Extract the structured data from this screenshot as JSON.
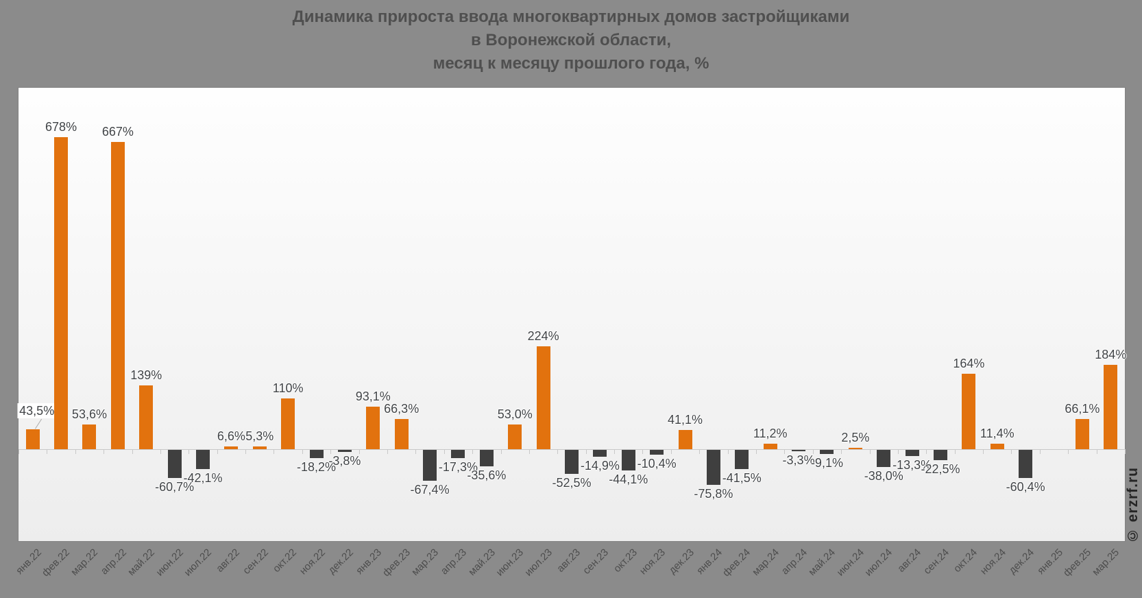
{
  "title": "Динамика прироста ввода многоквартирных домов застройщиками\nв Воронежской области,\nмесяц к месяцу прошлого года, %",
  "watermark": "© erzrf.ru",
  "colors": {
    "positive_bar": "#E2720E",
    "negative_bar": "#3F3F3F",
    "background": "#8B8B8B",
    "plot_background_top": "#FEFEFE",
    "plot_background_bottom": "#EDEDED",
    "axis": "#C8C8C8",
    "value_label": "#404346",
    "axis_label": "#4D4D4D",
    "title_text": "#4F4F4F",
    "watermark_text": "#262626"
  },
  "chart_data": {
    "type": "bar",
    "title": "Динамика прироста ввода многоквартирных домов застройщиками в Воронежской области, месяц к месяцу прошлого года, %",
    "xlabel": "",
    "ylabel": "",
    "ylim": [
      -200,
      785
    ],
    "grid": false,
    "legend": false,
    "zero_line": true,
    "categories": [
      "янв.22",
      "фев.22",
      "мар.22",
      "апр.22",
      "май.22",
      "июн.22",
      "июл.22",
      "авг.22",
      "сен.22",
      "окт.22",
      "ноя.22",
      "дек.22",
      "янв.23",
      "фев.23",
      "мар.23",
      "апр.23",
      "май.23",
      "июн.23",
      "июл.23",
      "авг.23",
      "сен.23",
      "окт.23",
      "ноя.23",
      "дек.23",
      "янв.24",
      "фев.24",
      "мар.24",
      "апр.24",
      "май.24",
      "июн.24",
      "июл.24",
      "авг.24",
      "сен.24",
      "окт.24",
      "ноя.24",
      "дек.24",
      "янв.25",
      "фев.25",
      "мар.25"
    ],
    "values": [
      43.5,
      678,
      53.6,
      667,
      139,
      -60.7,
      -42.1,
      6.6,
      5.3,
      110,
      -18.2,
      -3.8,
      93.1,
      66.3,
      -67.4,
      -17.3,
      -35.6,
      53.0,
      224,
      -52.5,
      -14.9,
      -44.1,
      -10.4,
      41.1,
      -75.8,
      -41.5,
      11.2,
      -3.3,
      -9.1,
      2.5,
      -38.0,
      -13.3,
      -22.5,
      164,
      11.4,
      -60.4,
      null,
      66.1,
      184
    ],
    "labels": [
      "43,5%",
      "678%",
      "53,6%",
      "667%",
      "139%",
      "-60,7%",
      "-42,1%",
      "6,6%",
      "5,3%",
      "110%",
      "-18,2%",
      "-3,8%",
      "93,1%",
      "66,3%",
      "-67,4%",
      "-17,3%",
      "-35,6%",
      "53,0%",
      "224%",
      "-52,5%",
      "-14,9%",
      "-44,1%",
      "-10,4%",
      "41,1%",
      "-75,8%",
      "-41,5%",
      "11,2%",
      "-3,3%",
      "-9,1%",
      "2,5%",
      "-38,0%",
      "-13,3%",
      "-22,5%",
      "164%",
      "11,4%",
      "-60,4%",
      "",
      "66,1%",
      "184%"
    ]
  }
}
